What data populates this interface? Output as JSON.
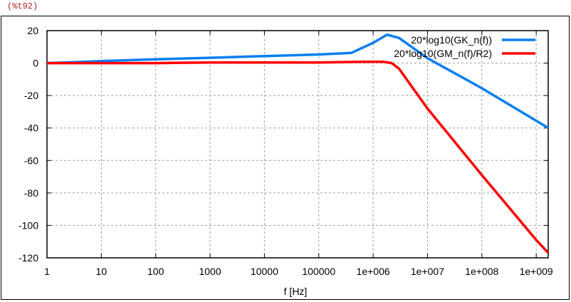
{
  "cell_label": "(%t92)",
  "chart_data": {
    "type": "line",
    "title": "",
    "xlabel": "f [Hz]",
    "ylabel": "",
    "xscale": "log",
    "xlim": [
      1,
      1670000000
    ],
    "ylim": [
      -120,
      20
    ],
    "grid": true,
    "legend_position": "top-right",
    "x_tick_labels": [
      "1",
      "10",
      "100",
      "1000",
      "10000",
      "100000",
      "1e+006",
      "1e+007",
      "1e+008",
      "1e+009"
    ],
    "y_tick_labels": [
      "20",
      "0",
      "-20",
      "-40",
      "-60",
      "-80",
      "-100",
      "-120"
    ],
    "series": [
      {
        "name": "20*log10(GK_n(f))",
        "color": "#0a7ff0",
        "x": [
          1,
          10,
          100,
          1000,
          10000,
          100000,
          400000,
          1000000,
          1800000,
          3000000,
          10000000,
          100000000,
          1000000000,
          1670000000
        ],
        "y": [
          0,
          1.2,
          2.3,
          3.3,
          4.3,
          5.3,
          6.3,
          12.5,
          17.5,
          15.5,
          3,
          -15.5,
          -35.5,
          -40
        ]
      },
      {
        "name": "20*log10(GM_n(f)/R2)",
        "color": "#ff0000",
        "x": [
          1,
          10,
          100,
          1000,
          10000,
          100000,
          700000,
          1500000,
          2200000,
          3000000,
          10000000,
          100000000,
          1000000000,
          1670000000
        ],
        "y": [
          0,
          0,
          0,
          0.4,
          0.4,
          0.4,
          0.8,
          0.8,
          0,
          -3.5,
          -28,
          -69,
          -109,
          -117
        ]
      }
    ]
  }
}
